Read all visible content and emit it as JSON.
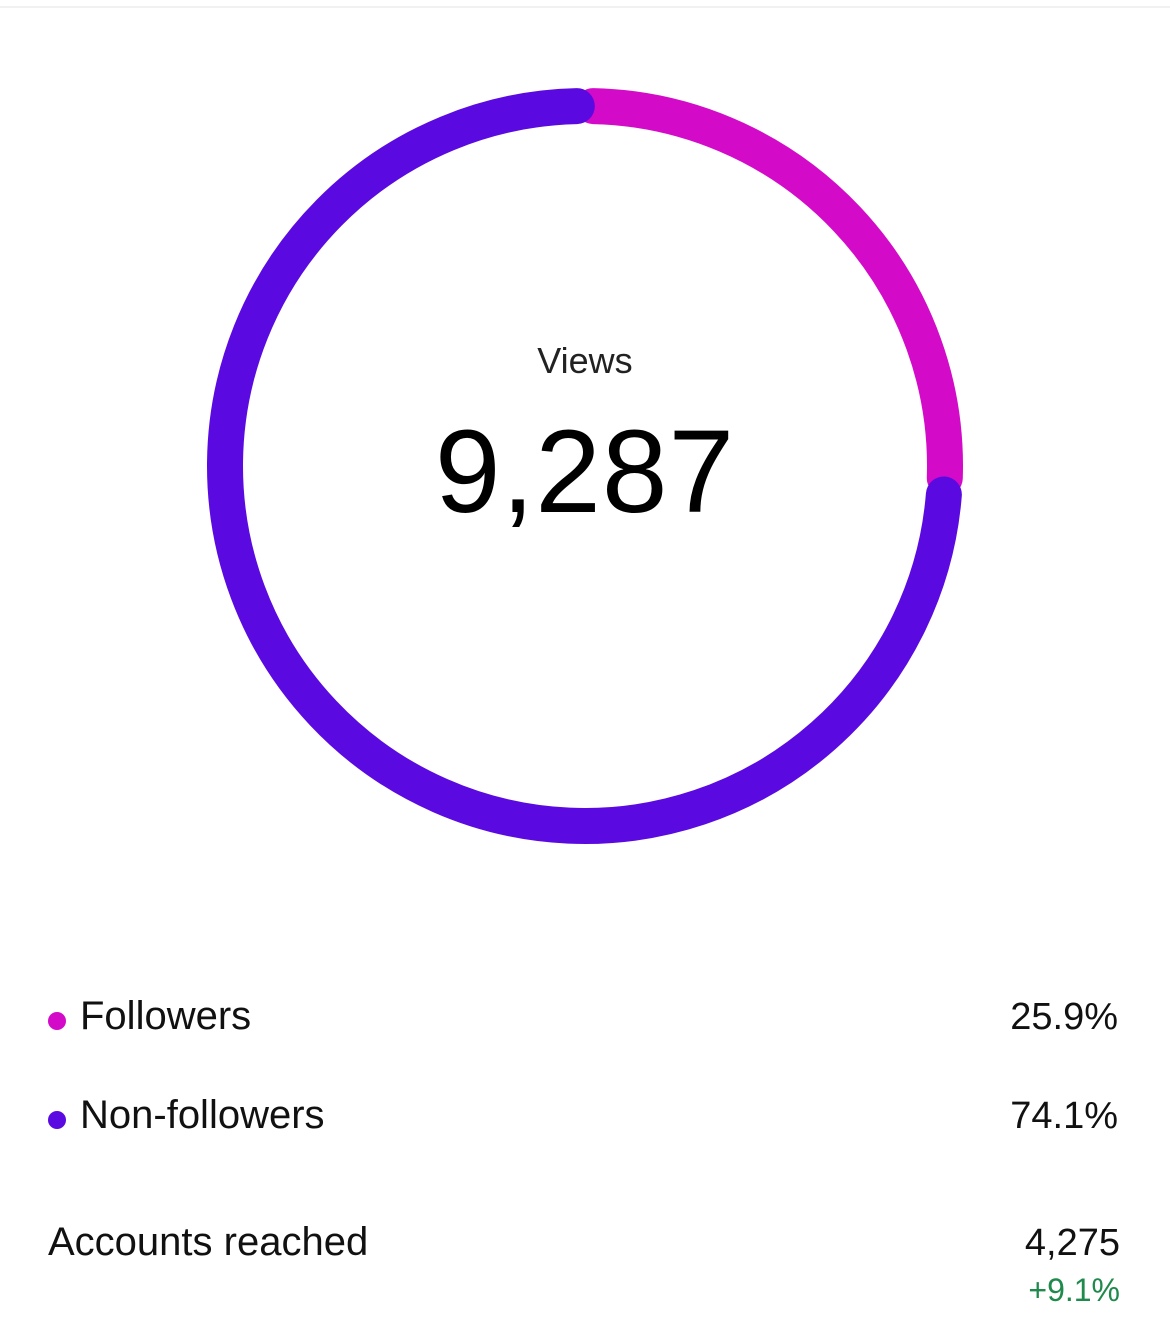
{
  "chart_data": {
    "type": "pie",
    "title": "Views",
    "total": "9,287",
    "categories": [
      "Followers",
      "Non-followers"
    ],
    "values": [
      25.9,
      74.1
    ],
    "colors": [
      "#d30bc8",
      "#5a0ae0"
    ],
    "style": "donut"
  },
  "center": {
    "label": "Views",
    "value": "9,287"
  },
  "legend": [
    {
      "label": "Followers",
      "value": "25.9%",
      "color": "#d30bc8"
    },
    {
      "label": "Non-followers",
      "value": "74.1%",
      "color": "#5a0ae0"
    }
  ],
  "accounts_reached": {
    "label": "Accounts reached",
    "value": "4,275",
    "change": "+9.1%",
    "change_color": "#1f8a4c"
  }
}
